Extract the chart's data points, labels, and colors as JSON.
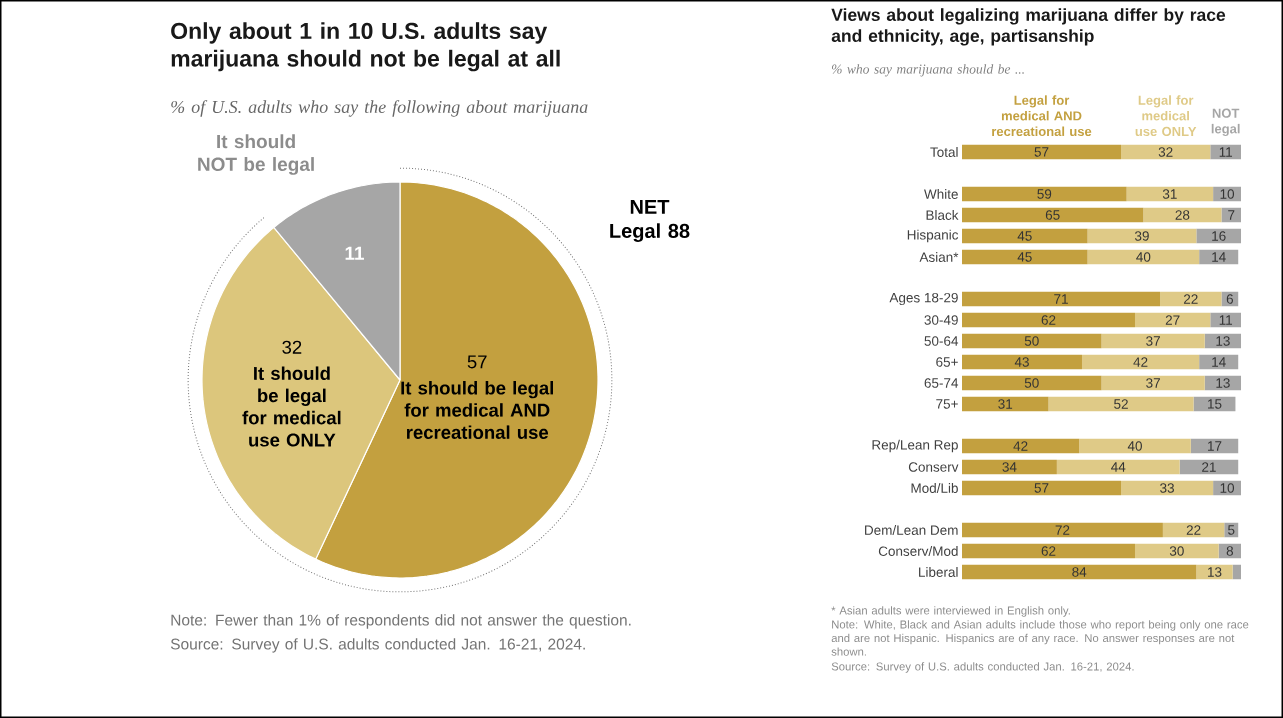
{
  "chart_data": [
    {
      "type": "pie",
      "title": "Only about 1 in 10 U.S. adults say marijuana should not be legal at all",
      "subtitle": "% of U.S. adults who say the following about marijuana",
      "categories": [
        "It should be legal for medical AND recreational use",
        "It should be legal for medical use ONLY",
        "It should NOT be legal"
      ],
      "values": [
        57,
        32,
        11
      ],
      "colors": [
        "#c3a03f",
        "#dcc67c",
        "#a6a6a6"
      ],
      "data_labels": true,
      "annotations": [
        "NET Legal 88",
        "Note: Fewer than 1% of respondents did not answer the question.",
        "Source: Survey of U.S. adults conducted Jan. 16-21, 2024."
      ]
    },
    {
      "type": "bar",
      "orientation": "horizontal",
      "stacked": true,
      "title": "Views about legalizing marijuana differ by race and ethnicity, age, partisanship",
      "subtitle": "% who say marijuana should be ...",
      "categories": [
        "Total",
        null,
        "White",
        "Black",
        "Hispanic",
        "Asian*",
        null,
        "Ages 18-29",
        "30-49",
        "50-64",
        "65+",
        "65-74",
        "75+",
        null,
        "Rep/Lean Rep",
        "Conserv",
        "Mod/Lib",
        null,
        "Dem/Lean Dem",
        "Conserv/Mod",
        "Liberal"
      ],
      "series": [
        {
          "name": "Legal for medical AND recreational use",
          "color": "#c3a03f",
          "values": [
            57,
            null,
            59,
            65,
            45,
            45,
            null,
            71,
            62,
            50,
            43,
            50,
            31,
            null,
            42,
            34,
            57,
            null,
            72,
            62,
            84
          ],
          "value_labels": [
            "57",
            null,
            "59",
            "65",
            "45",
            "45",
            null,
            "71",
            "62",
            "50",
            "43",
            "50",
            "31",
            null,
            "42",
            "34",
            "57",
            null,
            "72",
            "62",
            "84"
          ]
        },
        {
          "name": "Legal for medical use ONLY",
          "color": "#dfca87",
          "values": [
            32,
            null,
            31,
            28,
            39,
            40,
            null,
            22,
            27,
            37,
            42,
            37,
            52,
            null,
            40,
            44,
            33,
            null,
            22,
            30,
            13
          ],
          "value_labels": [
            "32",
            null,
            "31",
            "28",
            "39",
            "40",
            null,
            "22",
            "27",
            "37",
            "42",
            "37",
            "52",
            null,
            "40",
            "44",
            "33",
            null,
            "22",
            "30",
            "13"
          ]
        },
        {
          "name": "NOT legal",
          "color": "#a6a6a6",
          "values": [
            11,
            null,
            10,
            7,
            16,
            14,
            null,
            6,
            11,
            13,
            14,
            13,
            15,
            null,
            17,
            21,
            10,
            null,
            5,
            8,
            3
          ],
          "value_labels": [
            "11",
            null,
            "10",
            "7",
            "16",
            "14",
            null,
            "6",
            "11",
            "13",
            "14",
            "13",
            "15",
            null,
            "17",
            "21",
            "10",
            null,
            "5",
            "8",
            null
          ]
        }
      ],
      "xlim": [
        0,
        100
      ],
      "tick_labels": "y",
      "legend": "top",
      "annotations": [
        "* Asian adults were interviewed in English only.",
        "Note: White, Black and Asian adults include those who report being only one race and are not Hispanic. Hispanics are of any race. No answer responses are not shown.",
        "Source: Survey of U.S. adults conducted Jan. 16-21, 2024."
      ]
    }
  ]
}
